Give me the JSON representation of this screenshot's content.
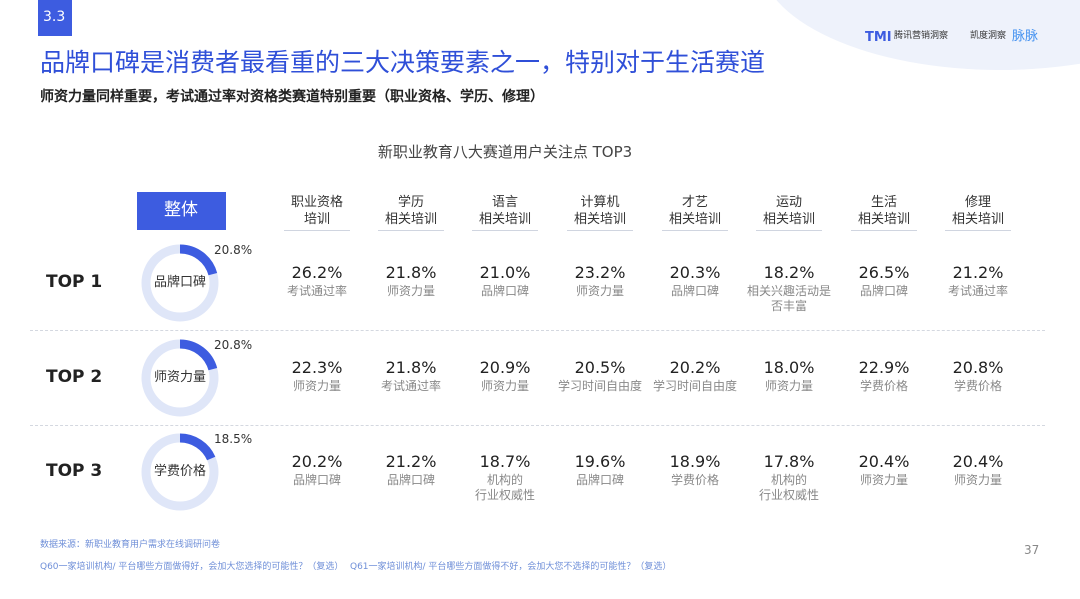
{
  "slide_number": "3.3",
  "logos": [
    "TMI",
    "腾讯营销洞察",
    "凯度洞察",
    "脉脉"
  ],
  "title": "品牌口碑是消费者最看重的三大决策要素之一，特别对于生活赛道",
  "subtitle": "师资力量同样重要，考试通过率对资格类赛道特别重要（职业资格、学历、修理）",
  "table_title": "新职业教育八大赛道用户关注点 TOP3",
  "overall": {
    "header": "整体",
    "values": [
      20.8,
      20.8,
      18.5
    ],
    "value_labels": [
      "20.8%",
      "20.8%",
      "18.5%"
    ],
    "factors": [
      "品牌口碑",
      "师资力量",
      "学费价格"
    ]
  },
  "columns": [
    [
      "职业资格",
      "培训"
    ],
    [
      "学历",
      "相关培训"
    ],
    [
      "语言",
      "相关培训"
    ],
    [
      "计算机",
      "相关培训"
    ],
    [
      "才艺",
      "相关培训"
    ],
    [
      "运动",
      "相关培训"
    ],
    [
      "生活",
      "相关培训"
    ],
    [
      "修理",
      "相关培训"
    ]
  ],
  "rows": [
    {
      "label": "TOP 1",
      "cells": [
        {
          "pct": "26.2%",
          "factor": [
            "考试通过率"
          ]
        },
        {
          "pct": "21.8%",
          "factor": [
            "师资力量"
          ]
        },
        {
          "pct": "21.0%",
          "factor": [
            "品牌口碑"
          ]
        },
        {
          "pct": "23.2%",
          "factor": [
            "师资力量"
          ]
        },
        {
          "pct": "20.3%",
          "factor": [
            "品牌口碑"
          ]
        },
        {
          "pct": "18.2%",
          "factor": [
            "相关兴趣活动是",
            "否丰富"
          ]
        },
        {
          "pct": "26.5%",
          "factor": [
            "品牌口碑"
          ]
        },
        {
          "pct": "21.2%",
          "factor": [
            "考试通过率"
          ]
        }
      ]
    },
    {
      "label": "TOP 2",
      "cells": [
        {
          "pct": "22.3%",
          "factor": [
            "师资力量"
          ]
        },
        {
          "pct": "21.8%",
          "factor": [
            "考试通过率"
          ]
        },
        {
          "pct": "20.9%",
          "factor": [
            "师资力量"
          ]
        },
        {
          "pct": "20.5%",
          "factor": [
            "学习时间自由度"
          ]
        },
        {
          "pct": "20.2%",
          "factor": [
            "学习时间自由度"
          ]
        },
        {
          "pct": "18.0%",
          "factor": [
            "师资力量"
          ]
        },
        {
          "pct": "22.9%",
          "factor": [
            "学费价格"
          ]
        },
        {
          "pct": "20.8%",
          "factor": [
            "学费价格"
          ]
        }
      ]
    },
    {
      "label": "TOP 3",
      "cells": [
        {
          "pct": "20.2%",
          "factor": [
            "品牌口碑"
          ]
        },
        {
          "pct": "21.2%",
          "factor": [
            "品牌口碑"
          ]
        },
        {
          "pct": "18.7%",
          "factor": [
            "机构的",
            "行业权威性"
          ]
        },
        {
          "pct": "19.6%",
          "factor": [
            "品牌口碑"
          ]
        },
        {
          "pct": "18.9%",
          "factor": [
            "学费价格"
          ]
        },
        {
          "pct": "17.8%",
          "factor": [
            "机构的",
            "行业权威性"
          ]
        },
        {
          "pct": "20.4%",
          "factor": [
            "师资力量"
          ]
        },
        {
          "pct": "20.4%",
          "factor": [
            "师资力量"
          ]
        }
      ]
    }
  ],
  "footer": {
    "source": "数据来源：新职业教育用户需求在线调研问卷",
    "notes": [
      "Q60一家培训机构/ 平台哪些方面做得好，会加大您选择的可能性？（复选）",
      "Q61一家培训机构/ 平台哪些方面做得不好，会加大您不选择的可能性？（复选）"
    ],
    "page": "37"
  }
}
